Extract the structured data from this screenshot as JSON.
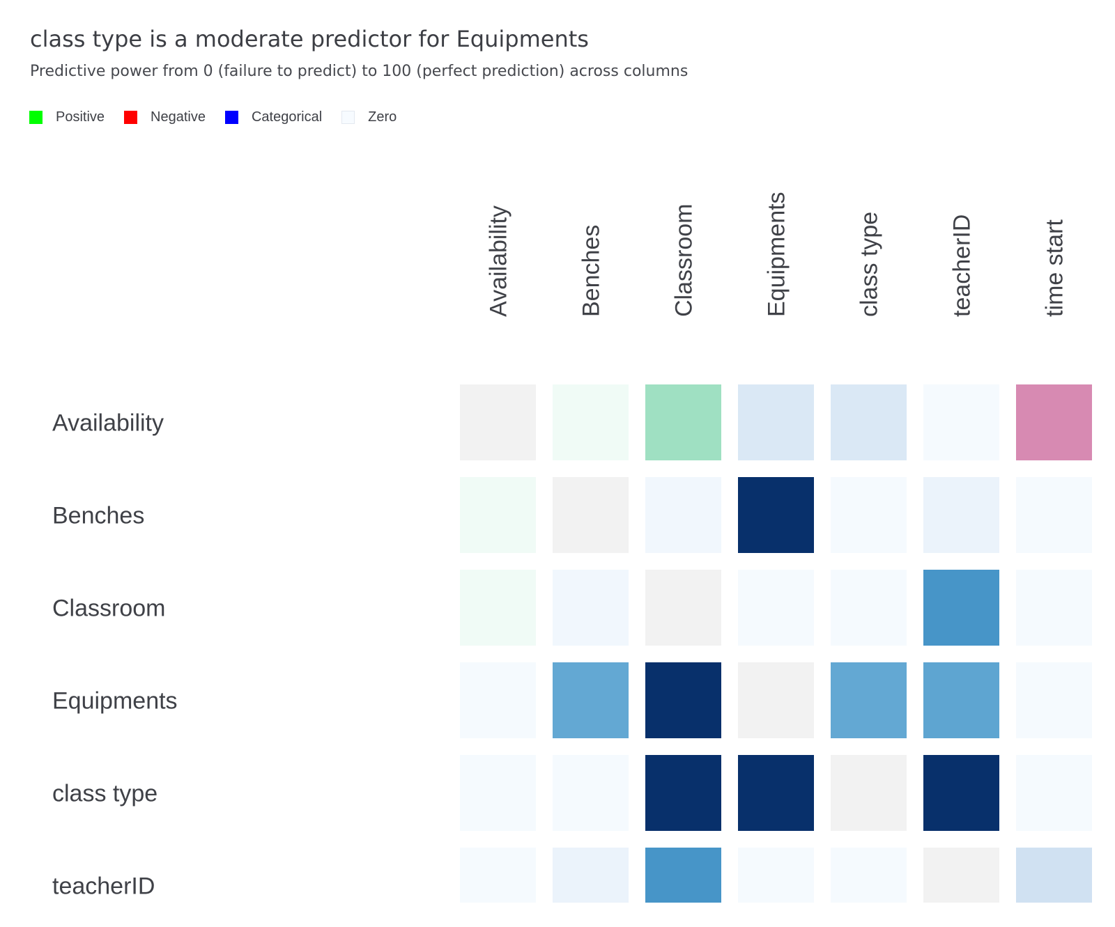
{
  "chart_data": {
    "type": "heatmap",
    "title": "class type is a moderate predictor for Equipments",
    "subtitle": "Predictive power from 0 (failure to predict) to 100 (perfect prediction) across columns",
    "legend": {
      "placement": "top-left",
      "items": [
        {
          "label": "Positive",
          "color": "#00ff00"
        },
        {
          "label": "Negative",
          "color": "#ff0000"
        },
        {
          "label": "Categorical",
          "color": "#0000ff"
        },
        {
          "label": "Zero",
          "color": "#f7fbff"
        }
      ]
    },
    "columns": [
      "Availability",
      "Benches",
      "Classroom",
      "Equipments",
      "class type",
      "teacherID",
      "time start"
    ],
    "rows": [
      "Availability",
      "Benches",
      "Classroom",
      "Equipments",
      "class type",
      "teacherID"
    ],
    "cells": [
      [
        {
          "kind": "diagonal",
          "value": null
        },
        {
          "kind": "positive",
          "value": 3
        },
        {
          "kind": "positive",
          "value": 38
        },
        {
          "kind": "categorical",
          "value": 15
        },
        {
          "kind": "categorical",
          "value": 15
        },
        {
          "kind": "categorical",
          "value": 1
        },
        {
          "kind": "negative",
          "value": 45
        }
      ],
      [
        {
          "kind": "positive",
          "value": 3
        },
        {
          "kind": "diagonal",
          "value": null
        },
        {
          "kind": "categorical",
          "value": 3
        },
        {
          "kind": "categorical",
          "value": 100
        },
        {
          "kind": "categorical",
          "value": 1
        },
        {
          "kind": "categorical",
          "value": 6
        },
        {
          "kind": "categorical",
          "value": 1
        }
      ],
      [
        {
          "kind": "positive",
          "value": 3
        },
        {
          "kind": "categorical",
          "value": 3
        },
        {
          "kind": "diagonal",
          "value": null
        },
        {
          "kind": "categorical",
          "value": 1
        },
        {
          "kind": "categorical",
          "value": 1
        },
        {
          "kind": "categorical",
          "value": 72
        },
        {
          "kind": "categorical",
          "value": 1
        }
      ],
      [
        {
          "kind": "categorical",
          "value": 1
        },
        {
          "kind": "categorical",
          "value": 55
        },
        {
          "kind": "categorical",
          "value": 100
        },
        {
          "kind": "diagonal",
          "value": null
        },
        {
          "kind": "categorical",
          "value": 55
        },
        {
          "kind": "categorical",
          "value": 58
        },
        {
          "kind": "categorical",
          "value": 1
        }
      ],
      [
        {
          "kind": "categorical",
          "value": 1
        },
        {
          "kind": "categorical",
          "value": 1
        },
        {
          "kind": "categorical",
          "value": 100
        },
        {
          "kind": "categorical",
          "value": 100
        },
        {
          "kind": "diagonal",
          "value": null
        },
        {
          "kind": "categorical",
          "value": 100
        },
        {
          "kind": "categorical",
          "value": 1
        }
      ],
      [
        {
          "kind": "categorical",
          "value": 1
        },
        {
          "kind": "categorical",
          "value": 6
        },
        {
          "kind": "categorical",
          "value": 72
        },
        {
          "kind": "categorical",
          "value": 1
        },
        {
          "kind": "categorical",
          "value": 1
        },
        {
          "kind": "diagonal",
          "value": null
        },
        {
          "kind": "categorical",
          "value": 20
        }
      ]
    ],
    "colors": {
      "diagonal": "#f2f2f2",
      "positive": [
        "#f7fdfa",
        "#9fe0c2"
      ],
      "negative": [
        "#fbf0f5",
        "#d78ab2"
      ],
      "categorical": [
        "#f7fbff",
        "#c6dbef",
        "#6baed6",
        "#4292c6",
        "#08306b"
      ]
    }
  }
}
